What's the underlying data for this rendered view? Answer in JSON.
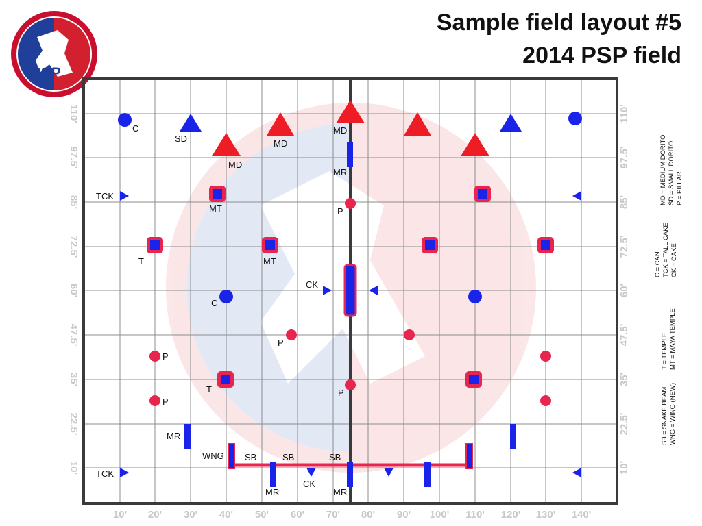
{
  "title": {
    "line1": "Sample field layout #5",
    "line2": "2014 PSP field"
  },
  "logo": {
    "text": "PSP"
  },
  "axes": {
    "x_ticks": [
      "10'",
      "20'",
      "30'",
      "40'",
      "50'",
      "60'",
      "70'",
      "80'",
      "90'",
      "100'",
      "110'",
      "120'",
      "130'",
      "140'"
    ],
    "y_ticks": [
      "10'",
      "22.5'",
      "35'",
      "47.5'",
      "60'",
      "72.5'",
      "85'",
      "97.5'",
      "110'"
    ]
  },
  "legend": [
    [
      "SB = SNAKE BEAM",
      "WNG = WING (NEW)"
    ],
    [
      "T = TEMPLE",
      "MT = MAYA TEMPLE"
    ],
    [
      "C = CAN",
      "TCK = TALL CAKE",
      "CK = CAKE"
    ],
    [
      "MD = MEDIUM DORITO",
      "SD = SMALL DORITO",
      "P = PILLAR"
    ]
  ],
  "labels": {
    "c": "C",
    "sd": "SD",
    "md": "MD",
    "mr": "MR",
    "tck": "TCK",
    "mt": "MT",
    "p": "P",
    "t": "T",
    "ck": "CK",
    "wng": "WNG",
    "sb": "SB"
  },
  "colors": {
    "red": "#ee1c25",
    "blue": "#1a23e8",
    "pink": "#e8254e",
    "grid": "#8c8c8c",
    "frame": "#3a3a3a"
  }
}
